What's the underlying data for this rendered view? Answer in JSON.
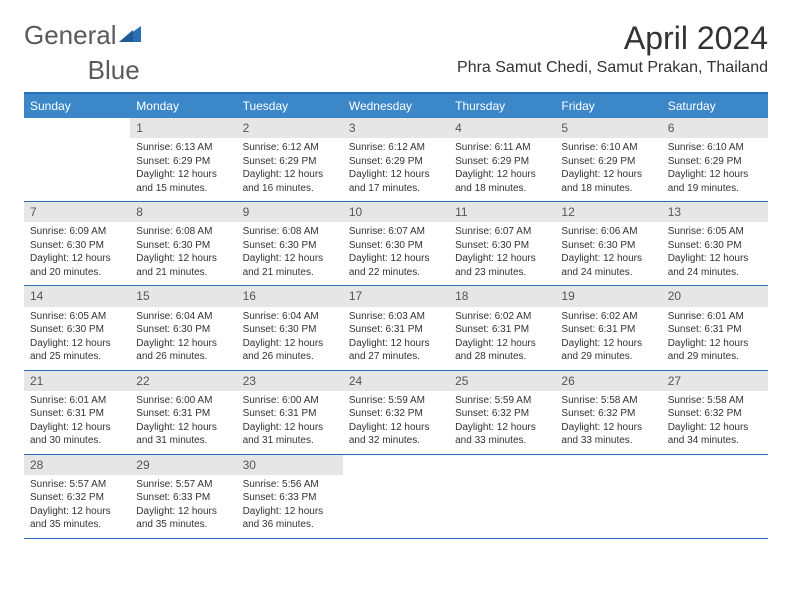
{
  "logo": {
    "text_left": "General",
    "text_right": "Blue"
  },
  "title": "April 2024",
  "location": "Phra Samut Chedi, Samut Prakan, Thailand",
  "day_headers": [
    "Sunday",
    "Monday",
    "Tuesday",
    "Wednesday",
    "Thursday",
    "Friday",
    "Saturday"
  ],
  "header_bg": "#3b87c8",
  "header_fg": "#ffffff",
  "border_color": "#2a6eb5",
  "daynum_bg": "#e6e6e6",
  "logo_triangle_color": "#2a6eb5",
  "weeks": [
    [
      {
        "num": "",
        "sunrise": "",
        "sunset": "",
        "daylight1": "",
        "daylight2": ""
      },
      {
        "num": "1",
        "sunrise": "Sunrise: 6:13 AM",
        "sunset": "Sunset: 6:29 PM",
        "daylight1": "Daylight: 12 hours",
        "daylight2": "and 15 minutes."
      },
      {
        "num": "2",
        "sunrise": "Sunrise: 6:12 AM",
        "sunset": "Sunset: 6:29 PM",
        "daylight1": "Daylight: 12 hours",
        "daylight2": "and 16 minutes."
      },
      {
        "num": "3",
        "sunrise": "Sunrise: 6:12 AM",
        "sunset": "Sunset: 6:29 PM",
        "daylight1": "Daylight: 12 hours",
        "daylight2": "and 17 minutes."
      },
      {
        "num": "4",
        "sunrise": "Sunrise: 6:11 AM",
        "sunset": "Sunset: 6:29 PM",
        "daylight1": "Daylight: 12 hours",
        "daylight2": "and 18 minutes."
      },
      {
        "num": "5",
        "sunrise": "Sunrise: 6:10 AM",
        "sunset": "Sunset: 6:29 PM",
        "daylight1": "Daylight: 12 hours",
        "daylight2": "and 18 minutes."
      },
      {
        "num": "6",
        "sunrise": "Sunrise: 6:10 AM",
        "sunset": "Sunset: 6:29 PM",
        "daylight1": "Daylight: 12 hours",
        "daylight2": "and 19 minutes."
      }
    ],
    [
      {
        "num": "7",
        "sunrise": "Sunrise: 6:09 AM",
        "sunset": "Sunset: 6:30 PM",
        "daylight1": "Daylight: 12 hours",
        "daylight2": "and 20 minutes."
      },
      {
        "num": "8",
        "sunrise": "Sunrise: 6:08 AM",
        "sunset": "Sunset: 6:30 PM",
        "daylight1": "Daylight: 12 hours",
        "daylight2": "and 21 minutes."
      },
      {
        "num": "9",
        "sunrise": "Sunrise: 6:08 AM",
        "sunset": "Sunset: 6:30 PM",
        "daylight1": "Daylight: 12 hours",
        "daylight2": "and 21 minutes."
      },
      {
        "num": "10",
        "sunrise": "Sunrise: 6:07 AM",
        "sunset": "Sunset: 6:30 PM",
        "daylight1": "Daylight: 12 hours",
        "daylight2": "and 22 minutes."
      },
      {
        "num": "11",
        "sunrise": "Sunrise: 6:07 AM",
        "sunset": "Sunset: 6:30 PM",
        "daylight1": "Daylight: 12 hours",
        "daylight2": "and 23 minutes."
      },
      {
        "num": "12",
        "sunrise": "Sunrise: 6:06 AM",
        "sunset": "Sunset: 6:30 PM",
        "daylight1": "Daylight: 12 hours",
        "daylight2": "and 24 minutes."
      },
      {
        "num": "13",
        "sunrise": "Sunrise: 6:05 AM",
        "sunset": "Sunset: 6:30 PM",
        "daylight1": "Daylight: 12 hours",
        "daylight2": "and 24 minutes."
      }
    ],
    [
      {
        "num": "14",
        "sunrise": "Sunrise: 6:05 AM",
        "sunset": "Sunset: 6:30 PM",
        "daylight1": "Daylight: 12 hours",
        "daylight2": "and 25 minutes."
      },
      {
        "num": "15",
        "sunrise": "Sunrise: 6:04 AM",
        "sunset": "Sunset: 6:30 PM",
        "daylight1": "Daylight: 12 hours",
        "daylight2": "and 26 minutes."
      },
      {
        "num": "16",
        "sunrise": "Sunrise: 6:04 AM",
        "sunset": "Sunset: 6:30 PM",
        "daylight1": "Daylight: 12 hours",
        "daylight2": "and 26 minutes."
      },
      {
        "num": "17",
        "sunrise": "Sunrise: 6:03 AM",
        "sunset": "Sunset: 6:31 PM",
        "daylight1": "Daylight: 12 hours",
        "daylight2": "and 27 minutes."
      },
      {
        "num": "18",
        "sunrise": "Sunrise: 6:02 AM",
        "sunset": "Sunset: 6:31 PM",
        "daylight1": "Daylight: 12 hours",
        "daylight2": "and 28 minutes."
      },
      {
        "num": "19",
        "sunrise": "Sunrise: 6:02 AM",
        "sunset": "Sunset: 6:31 PM",
        "daylight1": "Daylight: 12 hours",
        "daylight2": "and 29 minutes."
      },
      {
        "num": "20",
        "sunrise": "Sunrise: 6:01 AM",
        "sunset": "Sunset: 6:31 PM",
        "daylight1": "Daylight: 12 hours",
        "daylight2": "and 29 minutes."
      }
    ],
    [
      {
        "num": "21",
        "sunrise": "Sunrise: 6:01 AM",
        "sunset": "Sunset: 6:31 PM",
        "daylight1": "Daylight: 12 hours",
        "daylight2": "and 30 minutes."
      },
      {
        "num": "22",
        "sunrise": "Sunrise: 6:00 AM",
        "sunset": "Sunset: 6:31 PM",
        "daylight1": "Daylight: 12 hours",
        "daylight2": "and 31 minutes."
      },
      {
        "num": "23",
        "sunrise": "Sunrise: 6:00 AM",
        "sunset": "Sunset: 6:31 PM",
        "daylight1": "Daylight: 12 hours",
        "daylight2": "and 31 minutes."
      },
      {
        "num": "24",
        "sunrise": "Sunrise: 5:59 AM",
        "sunset": "Sunset: 6:32 PM",
        "daylight1": "Daylight: 12 hours",
        "daylight2": "and 32 minutes."
      },
      {
        "num": "25",
        "sunrise": "Sunrise: 5:59 AM",
        "sunset": "Sunset: 6:32 PM",
        "daylight1": "Daylight: 12 hours",
        "daylight2": "and 33 minutes."
      },
      {
        "num": "26",
        "sunrise": "Sunrise: 5:58 AM",
        "sunset": "Sunset: 6:32 PM",
        "daylight1": "Daylight: 12 hours",
        "daylight2": "and 33 minutes."
      },
      {
        "num": "27",
        "sunrise": "Sunrise: 5:58 AM",
        "sunset": "Sunset: 6:32 PM",
        "daylight1": "Daylight: 12 hours",
        "daylight2": "and 34 minutes."
      }
    ],
    [
      {
        "num": "28",
        "sunrise": "Sunrise: 5:57 AM",
        "sunset": "Sunset: 6:32 PM",
        "daylight1": "Daylight: 12 hours",
        "daylight2": "and 35 minutes."
      },
      {
        "num": "29",
        "sunrise": "Sunrise: 5:57 AM",
        "sunset": "Sunset: 6:33 PM",
        "daylight1": "Daylight: 12 hours",
        "daylight2": "and 35 minutes."
      },
      {
        "num": "30",
        "sunrise": "Sunrise: 5:56 AM",
        "sunset": "Sunset: 6:33 PM",
        "daylight1": "Daylight: 12 hours",
        "daylight2": "and 36 minutes."
      },
      {
        "num": "",
        "sunrise": "",
        "sunset": "",
        "daylight1": "",
        "daylight2": ""
      },
      {
        "num": "",
        "sunrise": "",
        "sunset": "",
        "daylight1": "",
        "daylight2": ""
      },
      {
        "num": "",
        "sunrise": "",
        "sunset": "",
        "daylight1": "",
        "daylight2": ""
      },
      {
        "num": "",
        "sunrise": "",
        "sunset": "",
        "daylight1": "",
        "daylight2": ""
      }
    ]
  ]
}
